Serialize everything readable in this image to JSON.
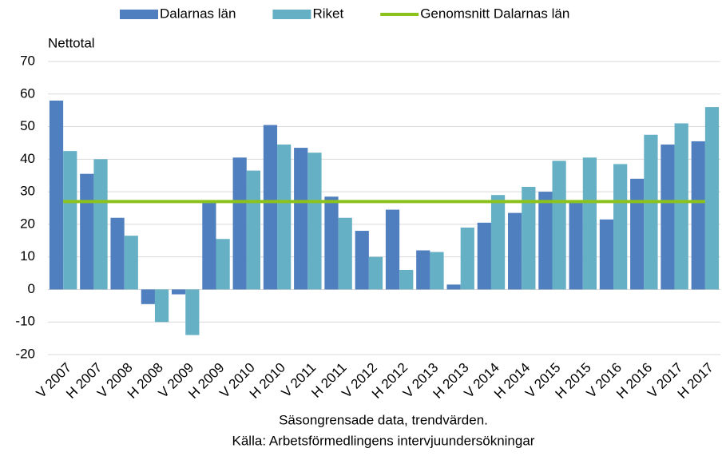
{
  "chart_data": {
    "type": "bar",
    "y_label": "Nettotal",
    "notes": [
      "Säsongrensade data, trendvärden.",
      "Källa: Arbetsförmedlingens intervjuundersökningar"
    ],
    "categories": [
      "V 2007",
      "H 2007",
      "V 2008",
      "H 2008",
      "V 2009",
      "H 2009",
      "V 2010",
      "H 2010",
      "V 2011",
      "H 2011",
      "V 2012",
      "H 2012",
      "V 2013",
      "H 2013",
      "V 2014",
      "H 2014",
      "V 2015",
      "H 2015",
      "V 2016",
      "H 2016",
      "V 2017",
      "H 2017"
    ],
    "series": [
      {
        "name": "Dalarnas län",
        "color": "#4f7fbf",
        "values": [
          58,
          35.5,
          22,
          -4.5,
          -1.5,
          27,
          40.5,
          50.5,
          43.5,
          28.5,
          18,
          24.5,
          12,
          1.5,
          20.5,
          23.5,
          30,
          27,
          21.5,
          34,
          44.5,
          45.5
        ]
      },
      {
        "name": "Riket",
        "color": "#66b0c6",
        "values": [
          42.5,
          40,
          16.5,
          -10,
          -14,
          15.5,
          36.5,
          44.5,
          42,
          22,
          10,
          6,
          11.5,
          19,
          29,
          31.5,
          39.5,
          40.5,
          38.5,
          47.5,
          51,
          56
        ]
      },
      {
        "name": "Genomsnitt Dalarnas län",
        "color": "#8cc21c",
        "type": "line",
        "values": [
          27,
          27,
          27,
          27,
          27,
          27,
          27,
          27,
          27,
          27,
          27,
          27,
          27,
          27,
          27,
          27,
          27,
          27,
          27,
          27,
          27,
          27
        ]
      }
    ],
    "ylim": [
      -20,
      70
    ],
    "yticks": [
      -20,
      -10,
      0,
      10,
      20,
      30,
      40,
      50,
      60,
      70
    ],
    "grid": true
  }
}
